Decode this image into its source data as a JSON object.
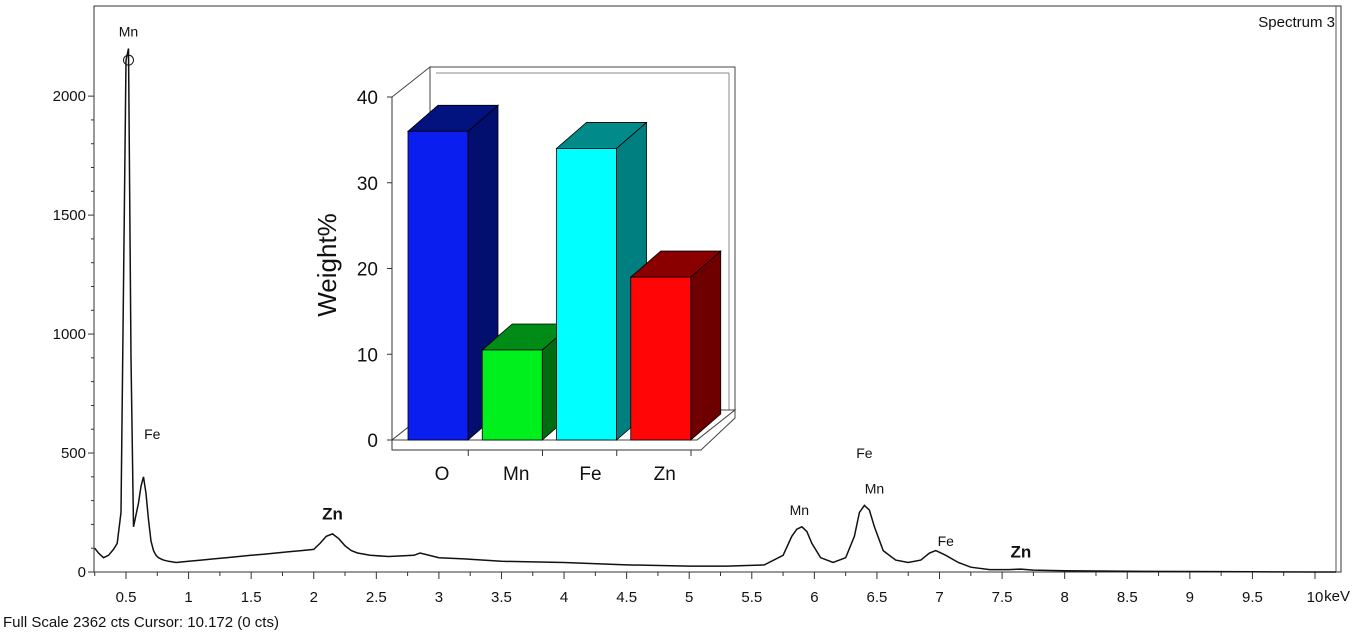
{
  "chart_data": [
    {
      "type": "line",
      "title": "Spectrum 3",
      "xlabel": "keV",
      "ylabel": "",
      "xlim": [
        0.25,
        10.2
      ],
      "ylim": [
        0,
        2362
      ],
      "x_ticks": [
        0.5,
        1,
        1.5,
        2,
        2.5,
        3,
        3.5,
        4,
        4.5,
        5,
        5.5,
        6,
        6.5,
        7,
        7.5,
        8,
        8.5,
        9,
        9.5,
        10
      ],
      "x_tick_labels": [
        "0.5",
        "1",
        "1.5",
        "2",
        "2.5",
        "3",
        "3.5",
        "4",
        "4.5",
        "5",
        "5.5",
        "6",
        "6.5",
        "7",
        "7.5",
        "8",
        "8.5",
        "9",
        "9.5",
        "10"
      ],
      "y_ticks": [
        0,
        500,
        1000,
        1500,
        2000
      ],
      "y_tick_labels": [
        "0",
        "500",
        "1000",
        "1500",
        "2000"
      ],
      "grid": false,
      "series": [
        {
          "x": [
            0.25,
            0.28,
            0.32,
            0.36,
            0.4,
            0.43,
            0.46,
            0.48,
            0.5,
            0.52,
            0.54,
            0.56,
            0.58,
            0.6,
            0.62,
            0.64,
            0.66,
            0.68,
            0.7,
            0.72,
            0.74,
            0.76,
            0.78,
            0.8,
            0.84,
            0.9,
            1.0,
            1.1,
            1.2,
            1.3,
            1.4,
            1.5,
            1.6,
            1.7,
            1.8,
            1.9,
            2.0,
            2.05,
            2.1,
            2.15,
            2.2,
            2.25,
            2.3,
            2.35,
            2.45,
            2.6,
            2.8,
            2.85,
            3.0,
            3.2,
            3.5,
            4.0,
            4.5,
            5.0,
            5.3,
            5.6,
            5.75,
            5.82,
            5.86,
            5.9,
            5.94,
            5.98,
            6.05,
            6.15,
            6.25,
            6.32,
            6.36,
            6.4,
            6.44,
            6.48,
            6.55,
            6.65,
            6.75,
            6.85,
            6.92,
            6.97,
            7.05,
            7.15,
            7.25,
            7.4,
            7.55,
            7.65,
            7.75,
            8.0,
            8.5,
            9.0,
            9.5,
            10.0,
            10.2
          ],
          "y": [
            100,
            80,
            60,
            70,
            95,
            120,
            250,
            1200,
            2150,
            2200,
            900,
            190,
            240,
            290,
            360,
            400,
            330,
            220,
            130,
            90,
            70,
            60,
            55,
            50,
            45,
            40,
            45,
            50,
            55,
            60,
            65,
            70,
            75,
            80,
            85,
            90,
            95,
            120,
            150,
            160,
            140,
            110,
            90,
            80,
            70,
            65,
            70,
            80,
            60,
            55,
            45,
            40,
            30,
            25,
            25,
            30,
            70,
            150,
            180,
            190,
            170,
            120,
            60,
            40,
            60,
            150,
            250,
            280,
            260,
            190,
            90,
            50,
            40,
            50,
            80,
            90,
            70,
            40,
            20,
            10,
            10,
            12,
            8,
            5,
            3,
            2,
            1,
            0,
            0
          ]
        }
      ],
      "peak_labels": [
        {
          "text": "Mn",
          "x": 0.52,
          "y": 2250,
          "style": "normal"
        },
        {
          "text": "Fe",
          "x": 0.71,
          "y": 560,
          "style": "normal"
        },
        {
          "text": "Zn",
          "x": 2.15,
          "y": 220,
          "style": "bold"
        },
        {
          "text": "Mn",
          "x": 5.88,
          "y": 240,
          "style": "normal"
        },
        {
          "text": "Fe",
          "x": 6.4,
          "y": 480,
          "style": "normal"
        },
        {
          "text": "Mn",
          "x": 6.48,
          "y": 330,
          "style": "normal"
        },
        {
          "text": "Fe",
          "x": 7.05,
          "y": 110,
          "style": "normal"
        },
        {
          "text": "Zn",
          "x": 7.65,
          "y": 60,
          "style": "bold"
        }
      ],
      "colors": {
        "line": "#111111"
      }
    },
    {
      "type": "bar",
      "categories": [
        "O",
        "Mn",
        "Fe",
        "Zn"
      ],
      "values": [
        36,
        10.5,
        34,
        19
      ],
      "ylabel": "Weight%",
      "ylim": [
        0,
        40
      ],
      "y_ticks": [
        0,
        10,
        20,
        30,
        40
      ],
      "y_tick_labels": [
        "0",
        "10",
        "20",
        "30",
        "40"
      ],
      "colors": [
        {
          "front": "#0a1ef0",
          "side": "#020f6e",
          "top": "#02127f"
        },
        {
          "front": "#00f01e",
          "side": "#006b0f",
          "top": "#008a16"
        },
        {
          "front": "#00ffff",
          "side": "#007f80",
          "top": "#008a8a"
        },
        {
          "front": "#ff0505",
          "side": "#6e0000",
          "top": "#8a0000"
        }
      ]
    }
  ],
  "footer": {
    "text": "Full Scale 2362 cts Cursor: 10.172  (0 cts)"
  }
}
